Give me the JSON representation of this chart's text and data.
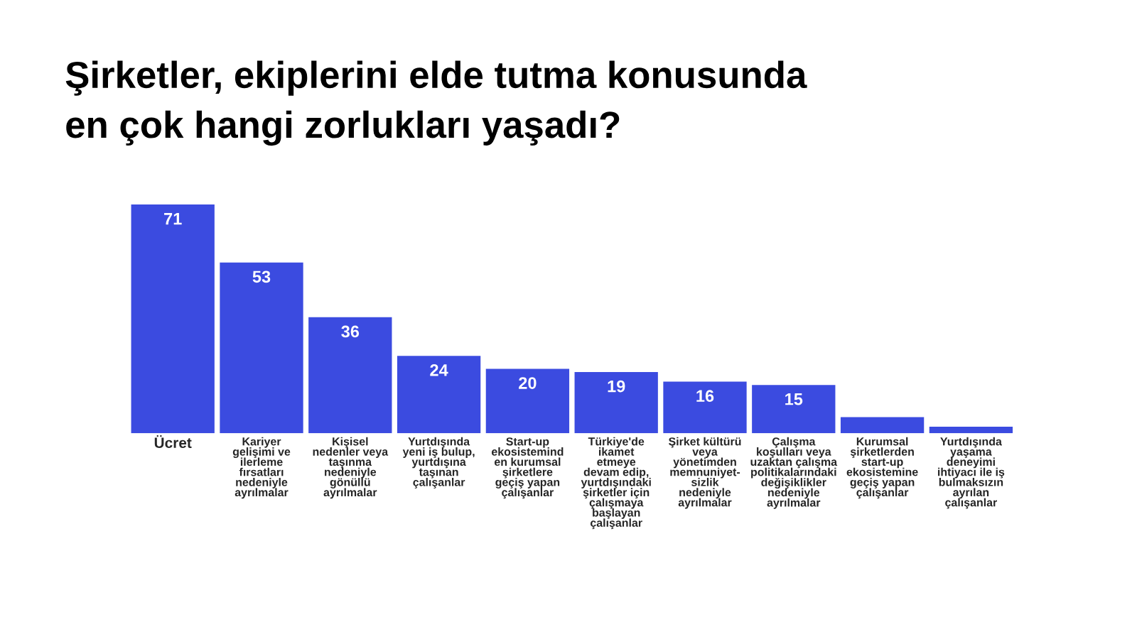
{
  "chart_data": {
    "type": "bar",
    "title": "Şirketler, ekiplerini elde tutma konusunda\nen çok hangi zorlukları yaşadı?",
    "categories": [
      "Ücret",
      "Kariyer\ngelişimi ve\nilerleme\nfırsatları\nnedeniyle\nayrılmalar",
      "Kişisel\nnedenler veya\ntaşınma\nnedeniyle\ngönüllü\nayrılmalar",
      "Yurtdışında\nyeni iş bulup,\nyurtdışına\ntaşınan\nçalışanlar",
      "Start-up\nekosistemind\nen kurumsal\nşirketlere\ngeçiş yapan\nçalışanlar",
      "Türkiye'de\nikamet\netmeye\ndevam edip,\nyurtdışındaki\nşirketler için\nçalışmaya\nbaşlayan\nçalışanlar",
      "Şirket kültürü\nveya\nyönetimden\nmemnuniyet-\nsizlik\nnedeniyle\nayrılmalar",
      "Çalışma\nkoşulları veya\nuzaktan çalışma\npolitikalarındaki\ndeğişiklikler\nnedeniyle\nayrılmalar",
      "Kurumsal\nşirketlerden\nstart-up\nekosistemine\ngeçiş yapan\nçalışanlar",
      "Yurtdışında\nyaşama\ndeneyimi\nihtiyacı ile iş\nbulmaksızın\nayrılan\nçalışanlar"
    ],
    "values": [
      71,
      53,
      36,
      24,
      20,
      19,
      16,
      15,
      5,
      2
    ],
    "value_labels": [
      "71",
      "53",
      "36",
      "24",
      "20",
      "19",
      "16",
      "15",
      null,
      null
    ],
    "color": "#3b4be0"
  }
}
